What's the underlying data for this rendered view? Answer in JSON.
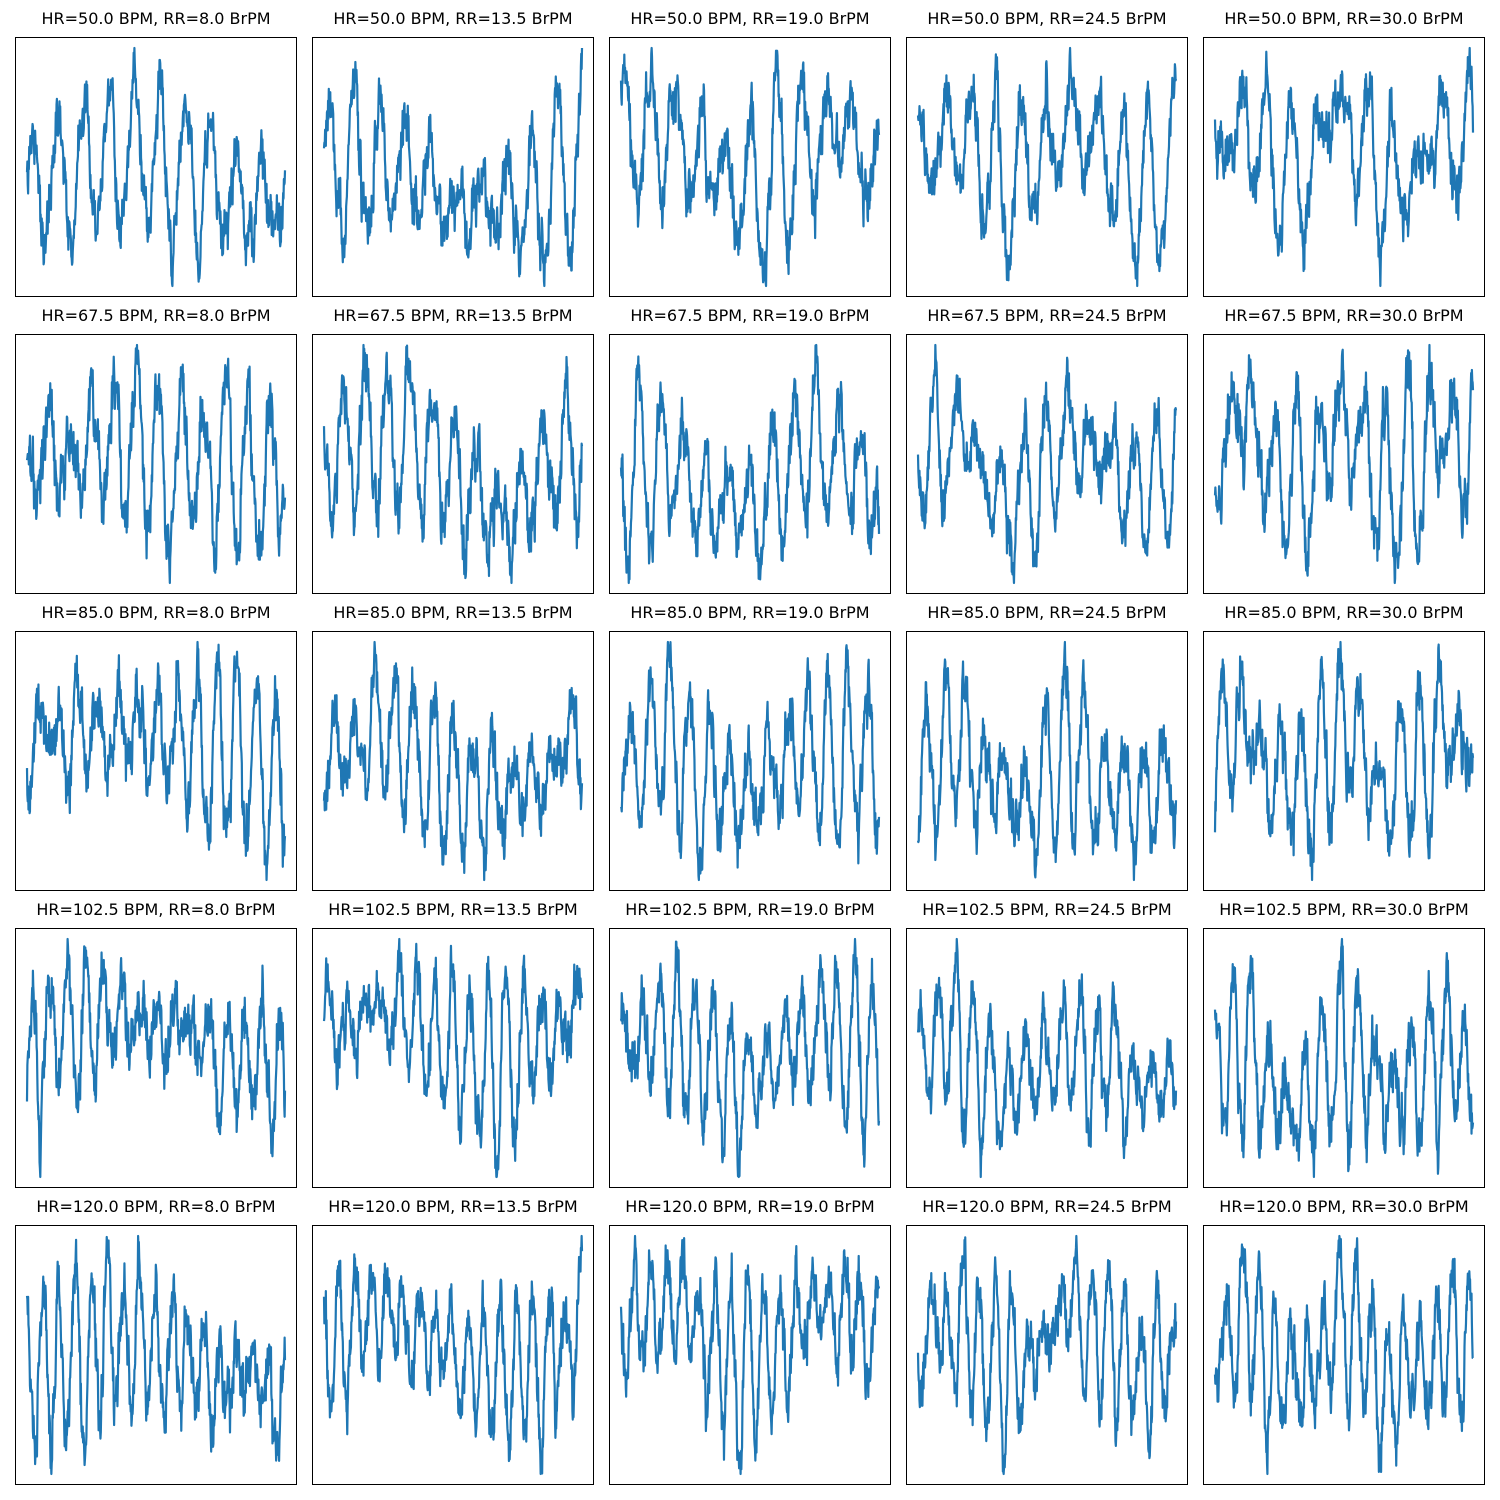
{
  "figure": {
    "line_color": "#1f77b4",
    "axis_color": "#000000",
    "background": "#ffffff"
  },
  "chart_data": [
    {
      "type": "line",
      "title": "HR=50.0 BPM, RR=8.0 BrPM",
      "hr": 50.0,
      "rr": 8.0,
      "xticks": "hidden",
      "yticks": "hidden",
      "grid": false
    },
    {
      "type": "line",
      "title": "HR=50.0 BPM, RR=13.5 BrPM",
      "hr": 50.0,
      "rr": 13.5,
      "xticks": "hidden",
      "yticks": "hidden",
      "grid": false
    },
    {
      "type": "line",
      "title": "HR=50.0 BPM, RR=19.0 BrPM",
      "hr": 50.0,
      "rr": 19.0,
      "xticks": "hidden",
      "yticks": "hidden",
      "grid": false
    },
    {
      "type": "line",
      "title": "HR=50.0 BPM, RR=24.5 BrPM",
      "hr": 50.0,
      "rr": 24.5,
      "xticks": "hidden",
      "yticks": "hidden",
      "grid": false
    },
    {
      "type": "line",
      "title": "HR=50.0 BPM, RR=30.0 BrPM",
      "hr": 50.0,
      "rr": 30.0,
      "xticks": "hidden",
      "yticks": "hidden",
      "grid": false
    },
    {
      "type": "line",
      "title": "HR=67.5 BPM, RR=8.0 BrPM",
      "hr": 67.5,
      "rr": 8.0,
      "xticks": "hidden",
      "yticks": "hidden",
      "grid": false
    },
    {
      "type": "line",
      "title": "HR=67.5 BPM, RR=13.5 BrPM",
      "hr": 67.5,
      "rr": 13.5,
      "xticks": "hidden",
      "yticks": "hidden",
      "grid": false
    },
    {
      "type": "line",
      "title": "HR=67.5 BPM, RR=19.0 BrPM",
      "hr": 67.5,
      "rr": 19.0,
      "xticks": "hidden",
      "yticks": "hidden",
      "grid": false
    },
    {
      "type": "line",
      "title": "HR=67.5 BPM, RR=24.5 BrPM",
      "hr": 67.5,
      "rr": 24.5,
      "xticks": "hidden",
      "yticks": "hidden",
      "grid": false
    },
    {
      "type": "line",
      "title": "HR=67.5 BPM, RR=30.0 BrPM",
      "hr": 67.5,
      "rr": 30.0,
      "xticks": "hidden",
      "yticks": "hidden",
      "grid": false
    },
    {
      "type": "line",
      "title": "HR=85.0 BPM, RR=8.0 BrPM",
      "hr": 85.0,
      "rr": 8.0,
      "xticks": "hidden",
      "yticks": "hidden",
      "grid": false
    },
    {
      "type": "line",
      "title": "HR=85.0 BPM, RR=13.5 BrPM",
      "hr": 85.0,
      "rr": 13.5,
      "xticks": "hidden",
      "yticks": "hidden",
      "grid": false
    },
    {
      "type": "line",
      "title": "HR=85.0 BPM, RR=19.0 BrPM",
      "hr": 85.0,
      "rr": 19.0,
      "xticks": "hidden",
      "yticks": "hidden",
      "grid": false
    },
    {
      "type": "line",
      "title": "HR=85.0 BPM, RR=24.5 BrPM",
      "hr": 85.0,
      "rr": 24.5,
      "xticks": "hidden",
      "yticks": "hidden",
      "grid": false
    },
    {
      "type": "line",
      "title": "HR=85.0 BPM, RR=30.0 BrPM",
      "hr": 85.0,
      "rr": 30.0,
      "xticks": "hidden",
      "yticks": "hidden",
      "grid": false
    },
    {
      "type": "line",
      "title": "HR=102.5 BPM, RR=8.0 BrPM",
      "hr": 102.5,
      "rr": 8.0,
      "xticks": "hidden",
      "yticks": "hidden",
      "grid": false
    },
    {
      "type": "line",
      "title": "HR=102.5 BPM, RR=13.5 BrPM",
      "hr": 102.5,
      "rr": 13.5,
      "xticks": "hidden",
      "yticks": "hidden",
      "grid": false
    },
    {
      "type": "line",
      "title": "HR=102.5 BPM, RR=19.0 BrPM",
      "hr": 102.5,
      "rr": 19.0,
      "xticks": "hidden",
      "yticks": "hidden",
      "grid": false
    },
    {
      "type": "line",
      "title": "HR=102.5 BPM, RR=24.5 BrPM",
      "hr": 102.5,
      "rr": 24.5,
      "xticks": "hidden",
      "yticks": "hidden",
      "grid": false
    },
    {
      "type": "line",
      "title": "HR=102.5 BPM, RR=30.0 BrPM",
      "hr": 102.5,
      "rr": 30.0,
      "xticks": "hidden",
      "yticks": "hidden",
      "grid": false
    },
    {
      "type": "line",
      "title": "HR=120.0 BPM, RR=8.0 BrPM",
      "hr": 120.0,
      "rr": 8.0,
      "xticks": "hidden",
      "yticks": "hidden",
      "grid": false
    },
    {
      "type": "line",
      "title": "HR=120.0 BPM, RR=13.5 BrPM",
      "hr": 120.0,
      "rr": 13.5,
      "xticks": "hidden",
      "yticks": "hidden",
      "grid": false
    },
    {
      "type": "line",
      "title": "HR=120.0 BPM, RR=19.0 BrPM",
      "hr": 120.0,
      "rr": 19.0,
      "xticks": "hidden",
      "yticks": "hidden",
      "grid": false
    },
    {
      "type": "line",
      "title": "HR=120.0 BPM, RR=24.5 BrPM",
      "hr": 120.0,
      "rr": 24.5,
      "xticks": "hidden",
      "yticks": "hidden",
      "grid": false
    },
    {
      "type": "line",
      "title": "HR=120.0 BPM, RR=30.0 BrPM",
      "hr": 120.0,
      "rr": 30.0,
      "xticks": "hidden",
      "yticks": "hidden",
      "grid": false
    }
  ]
}
